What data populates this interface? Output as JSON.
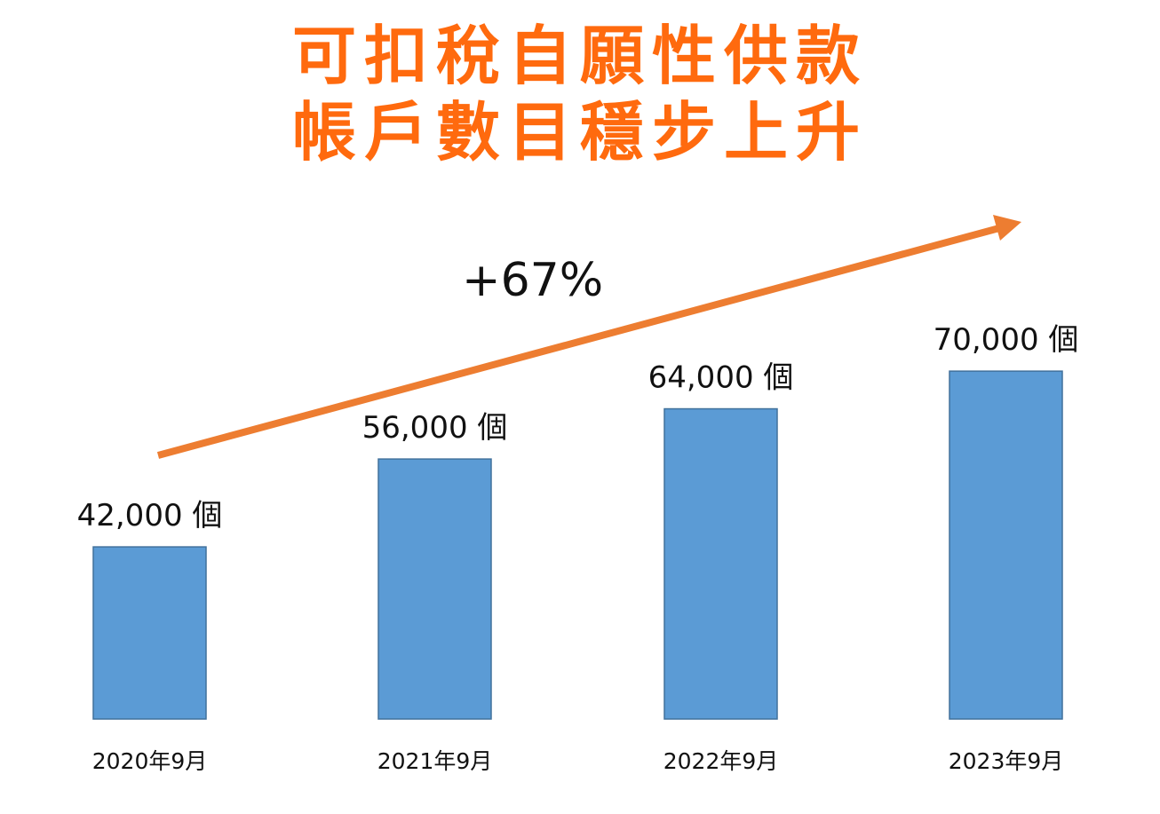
{
  "title_lines": [
    "可扣稅自願性供款",
    "帳戶數目穩步上升"
  ],
  "growth_label": "+67%",
  "colors": {
    "title": "#FF6A0E",
    "bar": "#5B9BD5",
    "bar_border": "#41719C",
    "arrow": "#ED7D31"
  },
  "chart_data": {
    "type": "bar",
    "title": "可扣稅自願性供款帳戶數目穩步上升",
    "categories": [
      "2020年9月",
      "2021年9月",
      "2022年9月",
      "2023年9月"
    ],
    "values": [
      42000,
      56000,
      64000,
      70000
    ],
    "data_labels": [
      "42,000 個",
      "56,000 個",
      "64,000 個",
      "70,000 個"
    ],
    "annotation": "+67%",
    "xlabel": "",
    "ylabel": "",
    "grid": false,
    "legend": "none"
  }
}
